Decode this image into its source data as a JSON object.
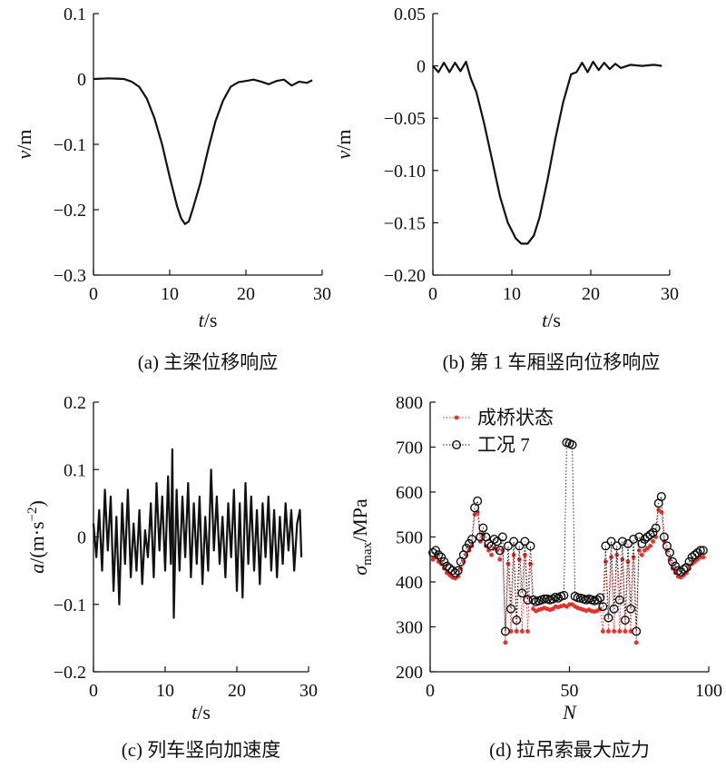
{
  "chart_data": [
    {
      "id": "a",
      "type": "line",
      "caption": "(a) 主梁位移响应",
      "xlabel": "t/s",
      "ylabel": "v/m",
      "xlim": [
        0,
        30
      ],
      "ylim": [
        -0.3,
        0.1
      ],
      "xticks": [
        0,
        10,
        20,
        30
      ],
      "xtick_labels": [
        "0",
        "10",
        "20",
        "30"
      ],
      "yticks": [
        -0.3,
        -0.2,
        -0.1,
        0,
        0.1
      ],
      "ytick_labels": [
        "−0.3",
        "−0.2",
        "−0.1",
        "0",
        "0.1"
      ],
      "grid": false,
      "series": [
        {
          "color": "#111111",
          "x": [
            0,
            2,
            4,
            5,
            6,
            7,
            8,
            9,
            10,
            11,
            11.5,
            12,
            12.5,
            13,
            14,
            15,
            16,
            17,
            18,
            19,
            20,
            21,
            22,
            23,
            24,
            25,
            26,
            27,
            28,
            28.7
          ],
          "y": [
            0,
            0.001,
            0,
            -0.004,
            -0.012,
            -0.03,
            -0.06,
            -0.1,
            -0.15,
            -0.196,
            -0.213,
            -0.222,
            -0.218,
            -0.2,
            -0.16,
            -0.11,
            -0.065,
            -0.033,
            -0.012,
            -0.005,
            -0.003,
            -0.001,
            -0.004,
            -0.008,
            -0.003,
            -0.001,
            -0.01,
            -0.004,
            -0.006,
            -0.002
          ]
        }
      ]
    },
    {
      "id": "b",
      "type": "line",
      "caption": "(b) 第 1 车厢竖向位移响应",
      "xlabel": "t/s",
      "ylabel": "v/m",
      "xlim": [
        0,
        30
      ],
      "ylim": [
        -0.2,
        0.05
      ],
      "xticks": [
        0,
        10,
        20,
        30
      ],
      "xtick_labels": [
        "0",
        "10",
        "20",
        "30"
      ],
      "yticks": [
        -0.2,
        -0.15,
        -0.1,
        -0.05,
        0,
        0.05
      ],
      "ytick_labels": [
        "−0.20",
        "−0.15",
        "−0.10",
        "−0.05",
        "0",
        "0.05"
      ],
      "grid": false,
      "series": [
        {
          "color": "#111111",
          "x": [
            0,
            0.7,
            1.4,
            2.1,
            2.8,
            3.5,
            4.2,
            4.8,
            5.5,
            6.5,
            7.5,
            8.5,
            9.5,
            10.5,
            11.2,
            12,
            12.8,
            13.5,
            14.5,
            15.5,
            16.5,
            17.5,
            18.2,
            18.9,
            19.6,
            20.3,
            21,
            21.7,
            22.4,
            23.1,
            23.8,
            25,
            26.5,
            28,
            29
          ],
          "y": [
            0,
            -0.006,
            0.003,
            -0.006,
            0.003,
            -0.005,
            0.004,
            -0.012,
            -0.025,
            -0.055,
            -0.09,
            -0.125,
            -0.15,
            -0.165,
            -0.17,
            -0.17,
            -0.162,
            -0.145,
            -0.11,
            -0.07,
            -0.035,
            -0.008,
            -0.006,
            0.003,
            -0.006,
            0.004,
            -0.004,
            0.003,
            -0.003,
            0.002,
            -0.002,
            0.001,
            0,
            0.001,
            0
          ]
        }
      ]
    },
    {
      "id": "c",
      "type": "line",
      "caption": "(c) 列车竖向加速度",
      "xlabel": "t/s",
      "ylabel": "a/(m·s⁻²)",
      "xlim": [
        0,
        30
      ],
      "ylim": [
        -0.2,
        0.2
      ],
      "xticks": [
        0,
        10,
        20,
        30
      ],
      "xtick_labels": [
        "0",
        "10",
        "20",
        "30"
      ],
      "yticks": [
        -0.2,
        -0.1,
        0,
        0.1,
        0.2
      ],
      "ytick_labels": [
        "−0.2",
        "−0.1",
        "0",
        "0.1",
        "0.2"
      ],
      "grid": false,
      "series": [
        {
          "color": "#111111",
          "x": [
            0,
            0.4,
            0.8,
            1.2,
            1.6,
            2,
            2.4,
            2.8,
            3.2,
            3.6,
            4,
            4.4,
            4.8,
            5.2,
            5.6,
            6,
            6.4,
            6.8,
            7.2,
            7.6,
            8,
            8.4,
            8.8,
            9.2,
            9.6,
            10,
            10.4,
            10.8,
            11,
            11.2,
            11.6,
            12,
            12.4,
            12.8,
            13.2,
            13.6,
            14,
            14.4,
            14.8,
            15.2,
            15.6,
            16,
            16.4,
            16.8,
            17.2,
            17.6,
            18,
            18.4,
            18.8,
            19.2,
            19.6,
            20,
            20.4,
            20.8,
            21.2,
            21.6,
            22,
            22.4,
            22.8,
            23.2,
            23.6,
            24,
            24.4,
            24.8,
            25.2,
            25.6,
            26,
            26.4,
            26.8,
            27.2,
            27.6,
            28,
            28.4,
            28.8,
            29
          ],
          "y": [
            0.02,
            -0.03,
            0.04,
            -0.05,
            0.07,
            -0.02,
            0.06,
            -0.08,
            0.03,
            -0.1,
            0.05,
            -0.04,
            0.07,
            -0.06,
            0.02,
            -0.05,
            0.04,
            -0.07,
            0.01,
            -0.03,
            0.05,
            -0.06,
            0.08,
            -0.02,
            0.06,
            -0.05,
            0.09,
            -0.04,
            0.13,
            -0.12,
            0.07,
            -0.05,
            0.06,
            -0.03,
            0.08,
            -0.06,
            0.05,
            -0.04,
            0.06,
            -0.07,
            0.03,
            -0.05,
            0.1,
            -0.02,
            0.06,
            -0.04,
            0.03,
            -0.06,
            0.05,
            -0.03,
            0.07,
            -0.08,
            0.05,
            -0.09,
            0.08,
            -0.04,
            0.06,
            -0.05,
            0.04,
            -0.07,
            0.05,
            -0.03,
            0.06,
            -0.05,
            0.04,
            -0.06,
            0.03,
            -0.04,
            0.05,
            -0.02,
            0.04,
            -0.05,
            0.02,
            0.04,
            -0.03
          ]
        }
      ]
    },
    {
      "id": "d",
      "type": "scatter",
      "caption": "(d) 拉吊索最大应力",
      "xlabel": "N",
      "ylabel": "σmax/MPa",
      "xlim": [
        0,
        100
      ],
      "ylim": [
        200,
        800
      ],
      "xticks": [
        0,
        50,
        100
      ],
      "xtick_labels": [
        "0",
        "50",
        "100"
      ],
      "yticks": [
        200,
        300,
        400,
        500,
        600,
        700,
        800
      ],
      "ytick_labels": [
        "200",
        "300",
        "400",
        "500",
        "600",
        "700",
        "800"
      ],
      "grid": false,
      "legend_position": "top-left",
      "series": [
        {
          "name": "成桥状态",
          "marker": "dot",
          "color": "#e8312a",
          "x": [
            1,
            2,
            3,
            4,
            5,
            6,
            7,
            8,
            9,
            10,
            11,
            12,
            13,
            14,
            15,
            16,
            17,
            18,
            19,
            20,
            21,
            22,
            23,
            24,
            25,
            26,
            27,
            28,
            29,
            30,
            31,
            32,
            33,
            34,
            35,
            36,
            37,
            38,
            39,
            40,
            41,
            42,
            43,
            44,
            45,
            46,
            47,
            48,
            49,
            50,
            51,
            52,
            53,
            54,
            55,
            56,
            57,
            58,
            59,
            60,
            61,
            62,
            63,
            64,
            65,
            66,
            67,
            68,
            69,
            70,
            71,
            72,
            73,
            74,
            75,
            76,
            77,
            78,
            79,
            80,
            81,
            82,
            83,
            84,
            85,
            86,
            87,
            88,
            89,
            90,
            91,
            92,
            93,
            94,
            95,
            96,
            97,
            98
          ],
          "y": [
            450,
            455,
            445,
            440,
            430,
            420,
            415,
            410,
            408,
            412,
            430,
            445,
            460,
            470,
            480,
            550,
            555,
            490,
            505,
            480,
            470,
            460,
            475,
            470,
            450,
            470,
            265,
            440,
            290,
            460,
            290,
            450,
            290,
            460,
            290,
            440,
            340,
            335,
            338,
            340,
            342,
            340,
            338,
            340,
            345,
            344,
            346,
            348,
            345,
            350,
            350,
            345,
            342,
            340,
            338,
            336,
            338,
            335,
            334,
            336,
            340,
            290,
            445,
            290,
            455,
            290,
            460,
            290,
            450,
            290,
            445,
            290,
            455,
            265,
            470,
            460,
            470,
            475,
            480,
            490,
            500,
            560,
            555,
            490,
            470,
            450,
            430,
            420,
            412,
            410,
            415,
            420,
            430,
            440,
            445,
            450,
            455,
            455
          ]
        },
        {
          "name": "工况 7",
          "marker": "open-circle",
          "color": "#111111",
          "x": [
            1,
            2,
            3,
            4,
            5,
            6,
            7,
            8,
            9,
            10,
            11,
            12,
            13,
            14,
            15,
            16,
            17,
            18,
            19,
            20,
            21,
            22,
            23,
            24,
            25,
            26,
            27,
            28,
            29,
            30,
            31,
            32,
            33,
            34,
            35,
            36,
            37,
            38,
            39,
            40,
            41,
            42,
            43,
            44,
            45,
            46,
            47,
            48,
            49,
            50,
            51,
            52,
            53,
            54,
            55,
            56,
            57,
            58,
            59,
            60,
            61,
            62,
            63,
            64,
            65,
            66,
            67,
            68,
            69,
            70,
            71,
            72,
            73,
            74,
            75,
            76,
            77,
            78,
            79,
            80,
            81,
            82,
            83,
            84,
            85,
            86,
            87,
            88,
            89,
            90,
            91,
            92,
            93,
            94,
            95,
            96,
            97,
            98
          ],
          "y": [
            465,
            470,
            460,
            455,
            445,
            435,
            430,
            425,
            420,
            425,
            445,
            460,
            475,
            485,
            495,
            565,
            580,
            500,
            520,
            500,
            485,
            480,
            495,
            490,
            470,
            500,
            290,
            480,
            340,
            490,
            315,
            480,
            375,
            490,
            360,
            480,
            360,
            356,
            358,
            360,
            362,
            362,
            360,
            362,
            366,
            364,
            368,
            370,
            710,
            708,
            705,
            368,
            365,
            364,
            362,
            360,
            362,
            360,
            358,
            360,
            365,
            345,
            480,
            320,
            490,
            340,
            480,
            360,
            490,
            315,
            485,
            340,
            495,
            290,
            500,
            485,
            495,
            500,
            505,
            510,
            520,
            575,
            590,
            500,
            480,
            465,
            445,
            435,
            425,
            422,
            428,
            432,
            445,
            455,
            460,
            465,
            470,
            470
          ]
        }
      ]
    }
  ]
}
